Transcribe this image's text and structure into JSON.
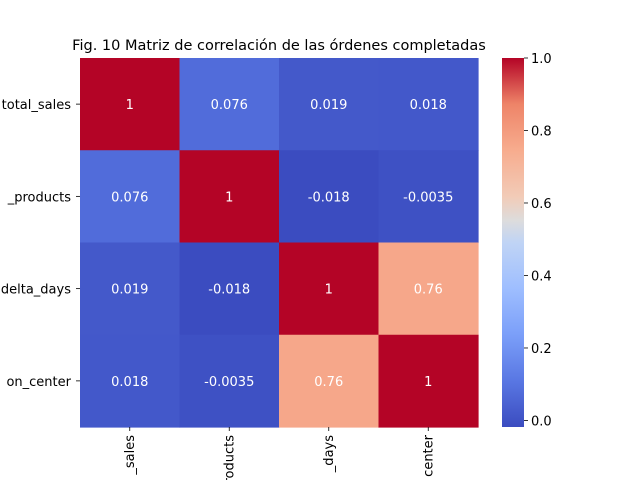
{
  "chart_data": {
    "type": "heatmap",
    "title": "Fig. 10 Matriz de correlación de las órdenes completadas",
    "row_labels": [
      "total_sales",
      "_products",
      "delta_days",
      "on_center"
    ],
    "col_labels": [
      "_sales",
      "products",
      "_days",
      "center"
    ],
    "values": [
      [
        1,
        0.076,
        0.019,
        0.018
      ],
      [
        0.076,
        1,
        -0.018,
        -0.0035
      ],
      [
        0.019,
        -0.018,
        1,
        0.76
      ],
      [
        0.018,
        -0.0035,
        0.76,
        1
      ]
    ],
    "cell_labels": [
      [
        "1",
        "0.076",
        "0.019",
        "0.018"
      ],
      [
        "0.076",
        "1",
        "-0.018",
        "-0.0035"
      ],
      [
        "0.019",
        "-0.018",
        "1",
        "0.76"
      ],
      [
        "0.018",
        "-0.0035",
        "0.76",
        "1"
      ]
    ],
    "colormap": "coolwarm",
    "colorbar": {
      "range": [
        -0.018,
        1
      ],
      "ticks": [
        0.0,
        0.2,
        0.4,
        0.6,
        0.8,
        1.0
      ],
      "tick_labels": [
        "0.0",
        "0.2",
        "0.4",
        "0.6",
        "0.8",
        "1.0"
      ]
    }
  }
}
